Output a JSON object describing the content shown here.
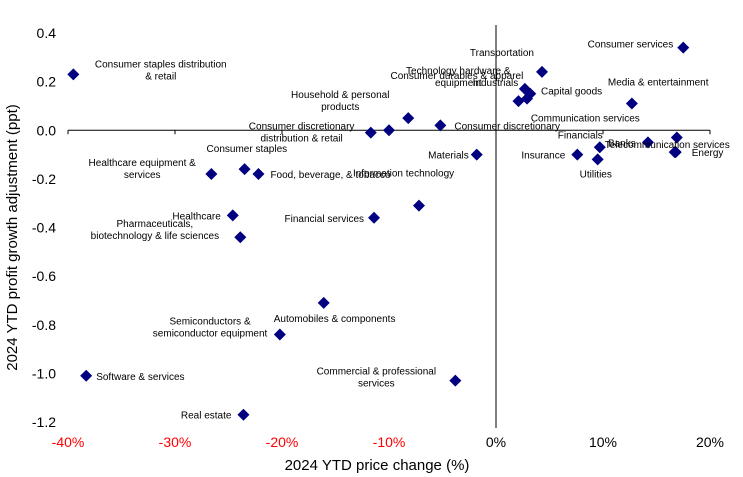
{
  "chart_data": {
    "type": "scatter",
    "title": "",
    "xlabel": "2024 YTD price change (%)",
    "ylabel": "2024 YTD profit growth adjustment (ppt)",
    "xlim": [
      -40,
      20
    ],
    "ylim": [
      -1.2,
      0.4
    ],
    "x_ticks": [
      -40,
      -30,
      -20,
      -10,
      0,
      10,
      20
    ],
    "x_tick_labels": [
      "-40%",
      "-30%",
      "-20%",
      "-10%",
      "0%",
      "10%",
      "20%"
    ],
    "y_ticks": [
      0.4,
      0.2,
      0.0,
      -0.2,
      -0.4,
      -0.6,
      -0.8,
      -1.0,
      -1.2
    ],
    "y_tick_labels": [
      "0.4",
      "0.2",
      "0.0",
      "-0.2",
      "-0.4",
      "-0.6",
      "-0.8",
      "-1.0",
      "-1.2"
    ],
    "negative_x_tick_color": "#ff0000",
    "marker_color": "#000080",
    "grid": false,
    "points": [
      {
        "label": "Consumer services",
        "x": 17.5,
        "y": 0.34
      },
      {
        "label": "Consumer staples distribution & retail",
        "x": -39.5,
        "y": 0.23
      },
      {
        "label": "Transportation",
        "x": 4.3,
        "y": 0.24
      },
      {
        "label": "Technology hardware & equipment",
        "x": 2.7,
        "y": 0.17
      },
      {
        "label": "Industrials",
        "x": 3.2,
        "y": 0.15
      },
      {
        "label": "Capital goods",
        "x": 2.9,
        "y": 0.13
      },
      {
        "label": "Media & entertainment",
        "x": 12.7,
        "y": 0.11
      },
      {
        "label": "Consumer durables & apparel",
        "x": 2.1,
        "y": 0.12
      },
      {
        "label": "Household & personal products",
        "x": -8.2,
        "y": 0.05
      },
      {
        "label": "Consumer discretionary distribution & retail",
        "x": -11.7,
        "y": -0.01
      },
      {
        "label": "Consumer discretionary",
        "x": -5.2,
        "y": 0.02
      },
      {
        "label": "Unlabeled point",
        "x": -10.0,
        "y": 0.0
      },
      {
        "label": "Communication services",
        "x": 16.9,
        "y": -0.03
      },
      {
        "label": "Telecommunication services",
        "x": 16.7,
        "y": -0.09
      },
      {
        "label": "Energy",
        "x": 16.8,
        "y": -0.09
      },
      {
        "label": "Banks",
        "x": 14.2,
        "y": -0.05
      },
      {
        "label": "Financials",
        "x": 9.7,
        "y": -0.07
      },
      {
        "label": "Insurance",
        "x": 7.6,
        "y": -0.1
      },
      {
        "label": "Utilities",
        "x": 9.5,
        "y": -0.12
      },
      {
        "label": "Materials",
        "x": -1.8,
        "y": -0.1
      },
      {
        "label": "Consumer staples",
        "x": -23.5,
        "y": -0.16
      },
      {
        "label": "Food, beverage, & tobacco",
        "x": -22.2,
        "y": -0.18
      },
      {
        "label": "Healthcare equipment & services",
        "x": -26.6,
        "y": -0.18
      },
      {
        "label": "Information technology",
        "x": -7.2,
        "y": -0.31
      },
      {
        "label": "Financial services",
        "x": -11.4,
        "y": -0.36
      },
      {
        "label": "Healthcare",
        "x": -24.6,
        "y": -0.35
      },
      {
        "label": "Pharmaceuticals, biotechnology & life sciences",
        "x": -23.9,
        "y": -0.44
      },
      {
        "label": "Automobiles & components",
        "x": -16.1,
        "y": -0.71
      },
      {
        "label": "Semiconductors & semiconductor equipment",
        "x": -20.2,
        "y": -0.84
      },
      {
        "label": "Software & services",
        "x": -38.3,
        "y": -1.01
      },
      {
        "label": "Commercial & professional services",
        "x": -3.8,
        "y": -1.03
      },
      {
        "label": "Real estate",
        "x": -23.6,
        "y": -1.17
      }
    ]
  },
  "ui": {
    "x_axis_title": "2024 YTD price change (%)",
    "y_axis_title": "2024 YTD profit growth adjustment (ppt)",
    "labels": [
      {
        "lines": [
          "Consumer services"
        ]
      },
      {
        "lines": [
          "Consumer staples distribution",
          "& retail"
        ]
      },
      {
        "lines": [
          "Transportation"
        ]
      },
      {
        "lines": [
          "Technology hardware &",
          "equipment"
        ]
      },
      {
        "lines": [
          "Industrials"
        ]
      },
      {
        "lines": [
          "Capital goods"
        ]
      },
      {
        "lines": [
          "Media & entertainment"
        ]
      },
      {
        "lines": [
          "Consumer durables & apparel"
        ]
      },
      {
        "lines": [
          "Household & personal",
          "products"
        ]
      },
      {
        "lines": [
          "Consumer discretionary",
          "distribution & retail"
        ]
      },
      {
        "lines": [
          "Consumer discretionary"
        ]
      },
      {
        "lines": [
          "Communication services"
        ]
      },
      {
        "lines": [
          "Telecommunication services"
        ]
      },
      {
        "lines": [
          "Energy"
        ]
      },
      {
        "lines": [
          "Banks"
        ]
      },
      {
        "lines": [
          "Financials"
        ]
      },
      {
        "lines": [
          "Insurance"
        ]
      },
      {
        "lines": [
          "Utilities"
        ]
      },
      {
        "lines": [
          "Materials"
        ]
      },
      {
        "lines": [
          "Consumer staples"
        ]
      },
      {
        "lines": [
          "Food, beverage, & tobacco"
        ]
      },
      {
        "lines": [
          "Healthcare equipment &",
          "services"
        ]
      },
      {
        "lines": [
          "Information technology"
        ]
      },
      {
        "lines": [
          "Financial services"
        ]
      },
      {
        "lines": [
          "Healthcare"
        ]
      },
      {
        "lines": [
          "Pharmaceuticals,",
          "biotechnology & life sciences"
        ]
      },
      {
        "lines": [
          "Automobiles & components"
        ]
      },
      {
        "lines": [
          "Semiconductors &",
          "semiconductor equipment"
        ]
      },
      {
        "lines": [
          "Software & services"
        ]
      },
      {
        "lines": [
          "Commercial & professional",
          "services"
        ]
      },
      {
        "lines": [
          "Real estate"
        ]
      }
    ]
  }
}
